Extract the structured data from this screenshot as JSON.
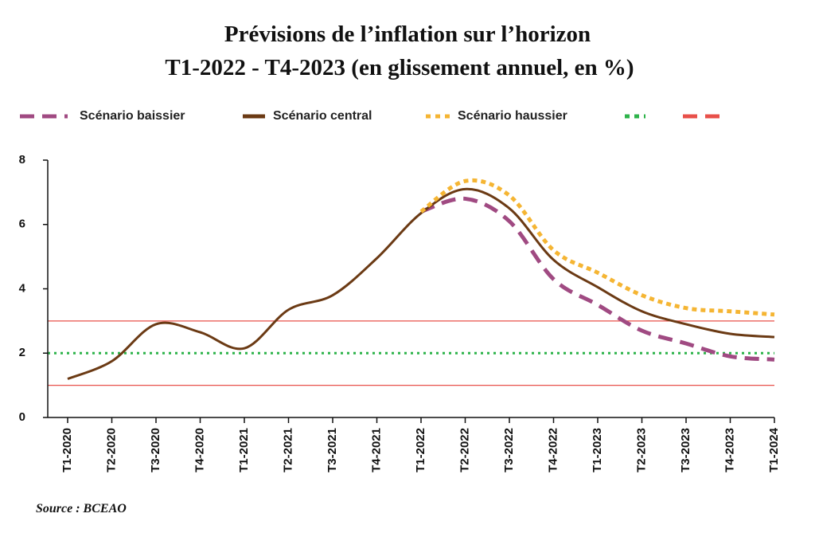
{
  "chart_data": {
    "type": "line",
    "title": [
      "Prévisions de l’inflation sur l’horizon",
      "T1-2022 - T4-2023 (en glissement annuel, en  %)"
    ],
    "source": "Source : BCEAO",
    "categories": [
      "T1-2020",
      "T2-2020",
      "T3-2020",
      "T4-2020",
      "T1-2021",
      "T2-2021",
      "T3-2021",
      "T4-2021",
      "T1-2022",
      "T2-2022",
      "T3-2022",
      "T4-2022",
      "T1-2023",
      "T2-2023",
      "T3-2023",
      "T4-2023",
      "T1-2024"
    ],
    "series": [
      {
        "name": "Scénario baissier",
        "color": "#a04a82",
        "style": "dashed",
        "values": [
          null,
          null,
          null,
          null,
          null,
          null,
          null,
          null,
          6.4,
          6.8,
          6.1,
          4.3,
          3.5,
          2.7,
          2.3,
          1.9,
          1.8
        ]
      },
      {
        "name": "Scénario central",
        "color": "#6b3a14",
        "style": "solid",
        "values": [
          1.2,
          1.75,
          2.9,
          2.65,
          2.15,
          3.35,
          3.8,
          4.95,
          6.35,
          7.1,
          6.5,
          4.9,
          4.05,
          3.3,
          2.9,
          2.6,
          2.5
        ]
      },
      {
        "name": "Scénario haussier",
        "color": "#f5b533",
        "style": "dotted",
        "values": [
          null,
          null,
          null,
          null,
          null,
          null,
          null,
          null,
          6.4,
          7.35,
          6.9,
          5.2,
          4.5,
          3.8,
          3.4,
          3.3,
          3.2
        ]
      }
    ],
    "hlines": [
      {
        "color": "#2db34a",
        "style": "dotted",
        "values": [
          2
        ]
      },
      {
        "color": "#e8504a",
        "style": "solid",
        "values": [
          1,
          3
        ]
      }
    ],
    "ylim": [
      0,
      8
    ],
    "yticks": [
      0,
      2,
      4,
      6,
      8
    ]
  }
}
